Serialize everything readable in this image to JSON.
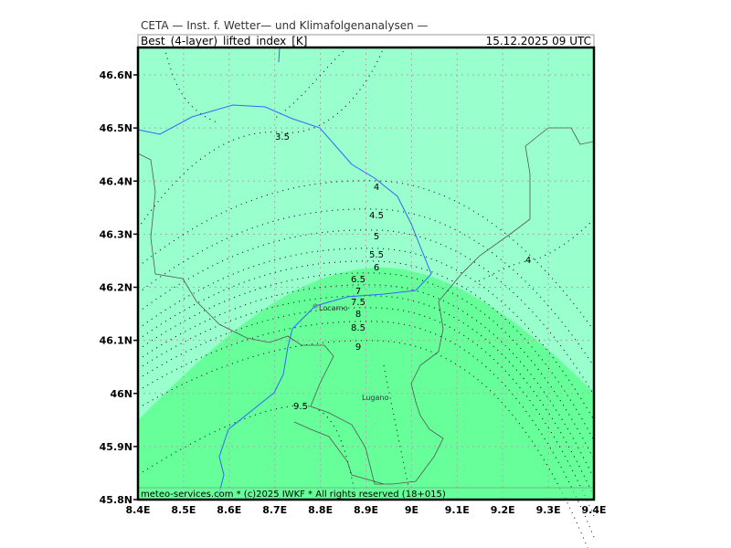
{
  "header": {
    "institute": "CETA — Inst. f. Wetter— und Klimafolgenanalysen —",
    "parameter": "Best_(4-layer)_lifted_index_[K]",
    "valid_time": "15.12.2025 09 UTC"
  },
  "footer": "meteo-services.com * (c)2025 IWKF * All rights reserved (18+015)",
  "axes": {
    "lon_ticks": [
      "8.4E",
      "8.5E",
      "8.6E",
      "8.7E",
      "8.8E",
      "8.9E",
      "9E",
      "9.1E",
      "9.2E",
      "9.3E",
      "9.4E"
    ],
    "lat_ticks": [
      "46.6N",
      "46.5N",
      "46.4N",
      "46.3N",
      "46.2N",
      "46.1N",
      "46N",
      "45.9N",
      "45.8N"
    ]
  },
  "contour_labels": [
    "3.5",
    "4",
    "4.5",
    "5",
    "5.5",
    "6",
    "6.5",
    "7",
    "7.5",
    "8",
    "8.5",
    "9",
    "9.5",
    "4"
  ],
  "cities": [
    "Locarno",
    "Lugano"
  ],
  "colors": {
    "fill_low": "#99ffcc",
    "fill_high": "#66ff99",
    "river": "#3366ff",
    "border": "#555555",
    "grid": "#aaaaaa"
  }
}
